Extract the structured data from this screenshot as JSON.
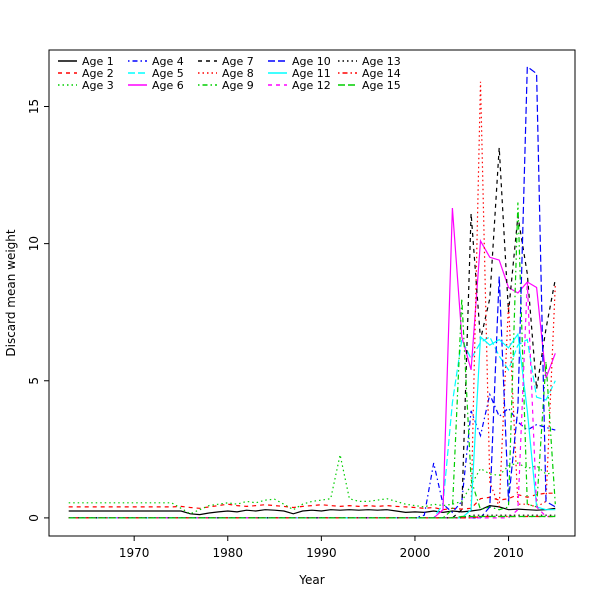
{
  "figure": {
    "background": "#ffffff",
    "axis_color": "#000000"
  },
  "chart_data": {
    "type": "line",
    "title": "",
    "xlabel": "Year",
    "ylabel": "Discard mean weight",
    "x_ticks": [
      1970,
      1980,
      1990,
      2000,
      2010
    ],
    "y_ticks": [
      0,
      5,
      10,
      15
    ],
    "xlim": [
      1960.9,
      2017.1
    ],
    "ylim": [
      -0.66,
      17.06
    ],
    "grid": false,
    "legend_position": "top-left",
    "legend_columns": 5,
    "legend_rows": 3,
    "legend_order": "column-major",
    "years": [
      1963,
      1964,
      1965,
      1966,
      1967,
      1968,
      1969,
      1970,
      1971,
      1972,
      1973,
      1974,
      1975,
      1976,
      1977,
      1978,
      1979,
      1980,
      1981,
      1982,
      1983,
      1984,
      1985,
      1986,
      1987,
      1988,
      1989,
      1990,
      1991,
      1992,
      1993,
      1994,
      1995,
      1996,
      1997,
      1998,
      1999,
      2000,
      2001,
      2002,
      2003,
      2004,
      2005,
      2006,
      2007,
      2008,
      2009,
      2010,
      2011,
      2012,
      2013,
      2014,
      2015
    ],
    "series": [
      {
        "name": "Age 1",
        "color": "#000000",
        "linetype": "solid",
        "values": [
          0.25,
          0.25,
          0.25,
          0.25,
          0.25,
          0.25,
          0.25,
          0.25,
          0.25,
          0.25,
          0.25,
          0.25,
          0.25,
          0.15,
          0.12,
          0.18,
          0.22,
          0.25,
          0.22,
          0.28,
          0.25,
          0.3,
          0.28,
          0.25,
          0.15,
          0.25,
          0.28,
          0.25,
          0.3,
          0.28,
          0.3,
          0.28,
          0.3,
          0.28,
          0.3,
          0.25,
          0.2,
          0.22,
          0.2,
          0.25,
          0.2,
          0.25,
          0.22,
          0.25,
          0.3,
          0.45,
          0.4,
          0.3,
          0.32,
          0.3,
          0.28,
          0.3,
          0.35
        ]
      },
      {
        "name": "Age 2",
        "color": "#FF0000",
        "linetype": "dashed",
        "values": [
          0.4,
          0.4,
          0.4,
          0.4,
          0.4,
          0.4,
          0.4,
          0.4,
          0.4,
          0.4,
          0.4,
          0.4,
          0.42,
          0.38,
          0.35,
          0.4,
          0.45,
          0.5,
          0.45,
          0.42,
          0.45,
          0.48,
          0.45,
          0.42,
          0.38,
          0.42,
          0.45,
          0.48,
          0.45,
          0.42,
          0.45,
          0.42,
          0.45,
          0.42,
          0.45,
          0.42,
          0.4,
          0.38,
          0.35,
          0.38,
          0.3,
          0.35,
          0.32,
          0.35,
          0.7,
          0.75,
          0.65,
          0.7,
          0.85,
          0.75,
          0.85,
          0.9,
          0.9
        ]
      },
      {
        "name": "Age 3",
        "color": "#00CD00",
        "linetype": "dotted",
        "values": [
          0.55,
          0.55,
          0.55,
          0.55,
          0.55,
          0.55,
          0.55,
          0.55,
          0.55,
          0.55,
          0.55,
          0.55,
          0.35,
          0.15,
          0.3,
          0.45,
          0.5,
          0.55,
          0.5,
          0.6,
          0.55,
          0.65,
          0.68,
          0.5,
          0.3,
          0.5,
          0.6,
          0.65,
          0.7,
          2.3,
          0.7,
          0.6,
          0.6,
          0.65,
          0.7,
          0.6,
          0.5,
          0.45,
          0.4,
          0.5,
          0.45,
          0.5,
          0.6,
          1.2,
          1.8,
          1.6,
          1.55,
          1.9,
          2.0,
          1.8,
          1.9,
          1.6,
          1.65
        ]
      },
      {
        "name": "Age 4",
        "color": "#0000FF",
        "linetype": "dotdash",
        "values": [
          0,
          0,
          0,
          0,
          0,
          0,
          0,
          0,
          0,
          0,
          0,
          0,
          0,
          0,
          0,
          0,
          0,
          0,
          0,
          0,
          0,
          0,
          0,
          0,
          0,
          0,
          0,
          0,
          0,
          0,
          0,
          0,
          0,
          0,
          0,
          0,
          0,
          0,
          0.1,
          2.0,
          0.5,
          0.2,
          0.6,
          3.9,
          3.0,
          4.5,
          3.7,
          4.0,
          3.5,
          3.2,
          3.4,
          3.3,
          3.2
        ]
      },
      {
        "name": "Age 5",
        "color": "#00FFFF",
        "linetype": "longdash",
        "values": [
          0,
          0,
          0,
          0,
          0,
          0,
          0,
          0,
          0,
          0,
          0,
          0,
          0,
          0,
          0,
          0,
          0,
          0,
          0,
          0,
          0,
          0,
          0,
          0,
          0,
          0,
          0,
          0,
          0,
          0,
          0,
          0,
          0,
          0,
          0,
          0,
          0,
          0,
          0,
          0,
          0.5,
          4.2,
          6.5,
          5.8,
          6.4,
          6.6,
          5.9,
          5.4,
          6.3,
          6.5,
          4.4,
          4.3,
          5.0
        ]
      },
      {
        "name": "Age 6",
        "color": "#FF00FF",
        "linetype": "solid",
        "values": [
          0,
          0,
          0,
          0,
          0,
          0,
          0,
          0,
          0,
          0,
          0,
          0,
          0,
          0,
          0,
          0,
          0,
          0,
          0,
          0,
          0,
          0,
          0,
          0,
          0,
          0,
          0,
          0,
          0,
          0,
          0,
          0,
          0,
          0,
          0,
          0,
          0,
          0,
          0,
          0,
          0.3,
          11.3,
          6.6,
          5.4,
          10.1,
          9.5,
          9.4,
          8.4,
          8.2,
          8.6,
          8.4,
          5.1,
          6.0
        ]
      },
      {
        "name": "Age 7",
        "color": "#000000",
        "linetype": "dashed",
        "values": [
          0,
          0,
          0,
          0,
          0,
          0,
          0,
          0,
          0,
          0,
          0,
          0,
          0,
          0,
          0,
          0,
          0,
          0,
          0,
          0,
          0,
          0,
          0,
          0,
          0,
          0,
          0,
          0,
          0,
          0,
          0,
          0,
          0,
          0,
          0,
          0,
          0,
          0,
          0,
          0,
          0,
          0,
          0.3,
          11.1,
          6.5,
          8.0,
          13.5,
          7.5,
          11.0,
          8.9,
          4.7,
          6.9,
          8.7
        ]
      },
      {
        "name": "Age 8",
        "color": "#FF0000",
        "linetype": "dotted",
        "values": [
          0,
          0,
          0,
          0,
          0,
          0,
          0,
          0,
          0,
          0,
          0,
          0,
          0,
          0,
          0,
          0,
          0,
          0,
          0,
          0,
          0,
          0,
          0,
          0,
          0,
          0,
          0,
          0,
          0,
          0,
          0,
          0,
          0,
          0,
          0,
          0,
          0,
          0,
          0,
          0,
          0,
          0,
          0,
          0.3,
          15.9,
          1.3,
          0.4,
          7.8,
          0.5,
          0.5,
          0.4,
          0.6,
          8.5
        ]
      },
      {
        "name": "Age 9",
        "color": "#00CD00",
        "linetype": "dotdash",
        "values": [
          0,
          0,
          0,
          0,
          0,
          0,
          0,
          0,
          0,
          0,
          0,
          0,
          0,
          0,
          0,
          0,
          0,
          0,
          0,
          0,
          0,
          0,
          0,
          0,
          0,
          0,
          0,
          0,
          0,
          0,
          0,
          0,
          0,
          0,
          0,
          0,
          0,
          0,
          0,
          0,
          0,
          0.3,
          8.0,
          1.4,
          0.3,
          0.4,
          0.3,
          0.4,
          11.5,
          0.5,
          0.4,
          5.7,
          0.5
        ]
      },
      {
        "name": "Age 10",
        "color": "#0000FF",
        "linetype": "longdash",
        "values": [
          0,
          0,
          0,
          0,
          0,
          0,
          0,
          0,
          0,
          0,
          0,
          0,
          0,
          0,
          0,
          0,
          0,
          0,
          0,
          0,
          0,
          0,
          0,
          0,
          0,
          0,
          0,
          0,
          0,
          0,
          0,
          0,
          0,
          0,
          0,
          0,
          0,
          0,
          0,
          0,
          0,
          0,
          0,
          0,
          0,
          0.4,
          8.8,
          0.6,
          4.0,
          16.45,
          16.2,
          0.6,
          0.4
        ]
      },
      {
        "name": "Age 11",
        "color": "#00FFFF",
        "linetype": "solid",
        "values": [
          0,
          0,
          0,
          0,
          0,
          0,
          0,
          0,
          0,
          0,
          0,
          0,
          0,
          0,
          0,
          0,
          0,
          0,
          0,
          0,
          0,
          0,
          0,
          0,
          0,
          0,
          0,
          0,
          0,
          0,
          0,
          0,
          0,
          0,
          0,
          0,
          0,
          0,
          0,
          0,
          0,
          0,
          0,
          0.3,
          6.6,
          6.3,
          6.5,
          6.2,
          6.7,
          3.9,
          0.4,
          0.3,
          0.3
        ]
      },
      {
        "name": "Age 12",
        "color": "#FF00FF",
        "linetype": "dashed",
        "values": [
          0,
          0,
          0,
          0,
          0,
          0,
          0,
          0,
          0,
          0,
          0,
          0,
          0,
          0,
          0,
          0,
          0,
          0,
          0,
          0,
          0,
          0,
          0,
          0,
          0,
          0,
          0,
          0,
          0,
          0,
          0,
          0,
          0,
          0,
          0,
          0,
          0,
          0,
          0,
          0,
          0,
          0,
          0,
          0,
          0,
          0,
          0,
          0,
          0.3,
          8.6,
          0.4,
          0.05,
          0.05
        ]
      },
      {
        "name": "Age 13",
        "color": "#000000",
        "linetype": "dotted",
        "values": [
          0,
          0,
          0,
          0,
          0,
          0,
          0,
          0,
          0,
          0,
          0,
          0,
          0,
          0,
          0,
          0,
          0,
          0,
          0,
          0,
          0,
          0,
          0,
          0,
          0,
          0,
          0,
          0,
          0,
          0,
          0,
          0,
          0,
          0,
          0,
          0,
          0,
          0,
          0,
          0,
          0,
          0,
          0,
          0.1,
          0.1,
          0.1,
          0.1,
          0.1,
          0.1,
          0.1,
          0.1,
          0.1,
          0.1
        ]
      },
      {
        "name": "Age 14",
        "color": "#FF0000",
        "linetype": "dotdash",
        "values": [
          0,
          0,
          0,
          0,
          0,
          0,
          0,
          0,
          0,
          0,
          0,
          0,
          0,
          0,
          0,
          0,
          0,
          0,
          0,
          0,
          0,
          0,
          0,
          0,
          0,
          0,
          0,
          0,
          0,
          0,
          0,
          0,
          0,
          0,
          0,
          0,
          0,
          0,
          0,
          0,
          0,
          0,
          0,
          0,
          0.05,
          0.05,
          0.05,
          0.05,
          0.05,
          0.05,
          0.05,
          0.05,
          0.05
        ]
      },
      {
        "name": "Age 15",
        "color": "#00CD00",
        "linetype": "longdash",
        "values": [
          0,
          0,
          0,
          0,
          0,
          0,
          0,
          0,
          0,
          0,
          0,
          0,
          0,
          0,
          0,
          0,
          0,
          0,
          0,
          0,
          0,
          0,
          0,
          0,
          0,
          0,
          0,
          0,
          0,
          0,
          0,
          0,
          0,
          0,
          0,
          0,
          0,
          0,
          0,
          0,
          0,
          0,
          0.05,
          0.05,
          0.05,
          0.05,
          0.05,
          0.05,
          0.05,
          0.05,
          0.05,
          0.05,
          0.05
        ]
      }
    ]
  }
}
